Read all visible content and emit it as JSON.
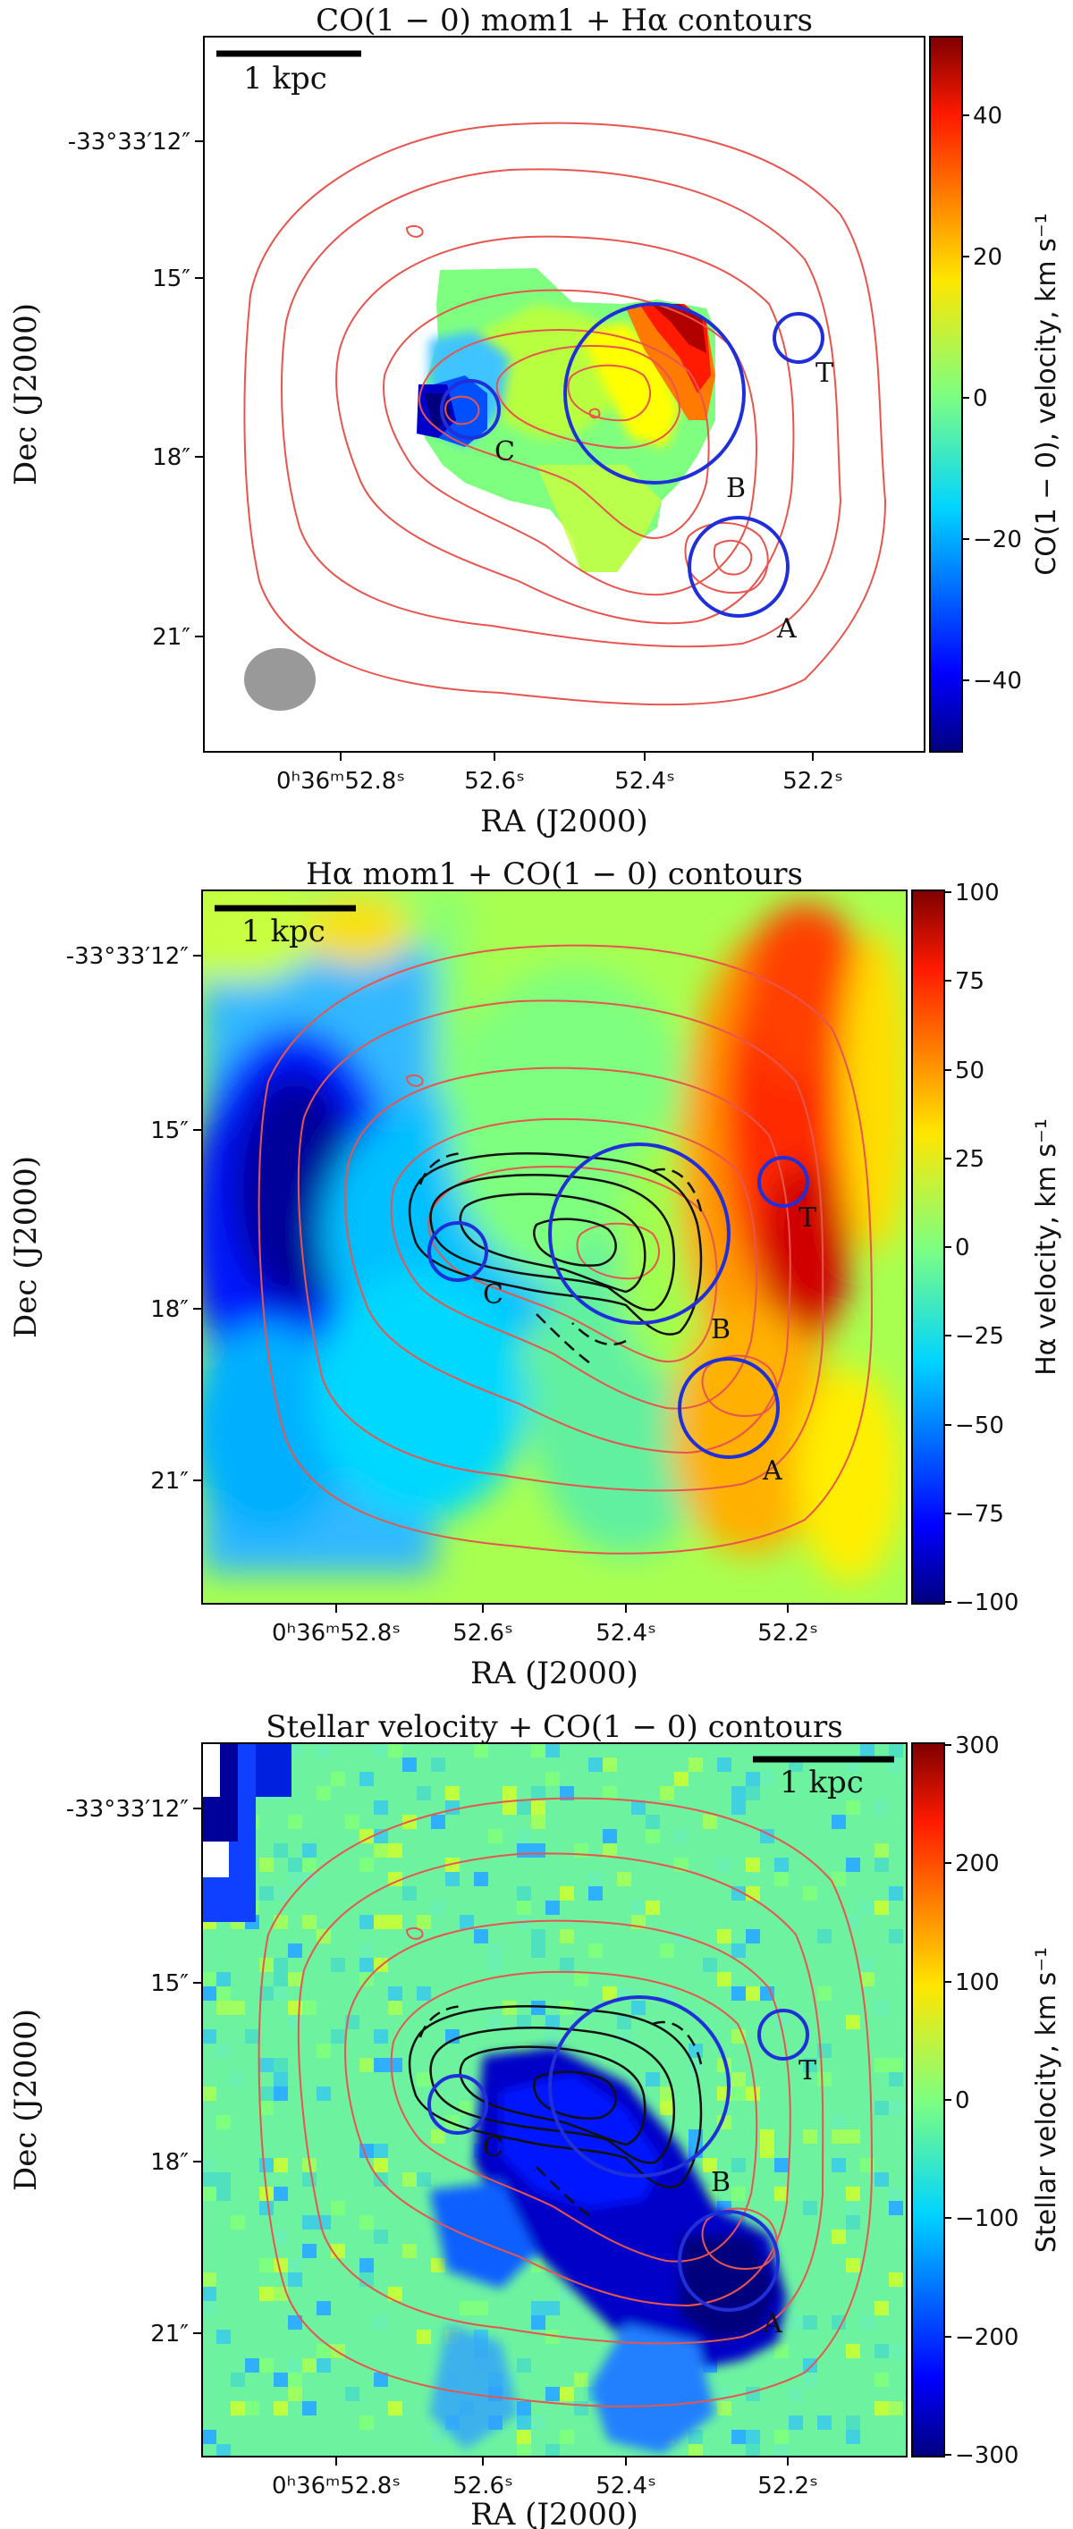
{
  "chart_data": [
    {
      "type": "heatmap",
      "title": "CO(1 − 0) mom1 + Hα contours",
      "xlabel": "RA (J2000)",
      "ylabel": "Dec (J2000)",
      "x_ticks": [
        "0ʰ36ᵐ52.8ˢ",
        "52.6ˢ",
        "52.4ˢ",
        "52.2ˢ"
      ],
      "y_ticks": [
        "-33°33′12″",
        "15″",
        "18″",
        "21″"
      ],
      "colorbar": {
        "label": "CO(1 − 0), velocity, km s⁻¹",
        "range": [
          -50,
          50
        ],
        "ticks": [
          "40",
          "20",
          "0",
          "−20",
          "−40"
        ],
        "colormap": "jet"
      },
      "scalebar": "1 kpc",
      "contours": "Hα",
      "regions": [
        "C",
        "T",
        "B",
        "A"
      ],
      "beam": true
    },
    {
      "type": "heatmap",
      "title": "Hα mom1 + CO(1 − 0) contours",
      "xlabel": "RA (J2000)",
      "ylabel": "Dec (J2000)",
      "x_ticks": [
        "0ʰ36ᵐ52.8ˢ",
        "52.6ˢ",
        "52.4ˢ",
        "52.2ˢ"
      ],
      "y_ticks": [
        "-33°33′12″",
        "15″",
        "18″",
        "21″"
      ],
      "colorbar": {
        "label": "Hα velocity, km s⁻¹",
        "range": [
          -100,
          100
        ],
        "ticks": [
          "100",
          "75",
          "50",
          "25",
          "0",
          "−25",
          "−50",
          "−75",
          "−100"
        ],
        "colormap": "jet"
      },
      "scalebar": "1 kpc",
      "contours": "CO(1 − 0)",
      "regions": [
        "C",
        "T",
        "B",
        "A"
      ]
    },
    {
      "type": "heatmap",
      "title": "Stellar velocity + CO(1 − 0) contours",
      "xlabel": "RA (J2000)",
      "ylabel": "Dec (J2000)",
      "x_ticks": [
        "0ʰ36ᵐ52.8ˢ",
        "52.6ˢ",
        "52.4ˢ",
        "52.2ˢ"
      ],
      "y_ticks": [
        "-33°33′12″",
        "15″",
        "18″",
        "21″"
      ],
      "colorbar": {
        "label": "Stellar velocity, km s⁻¹",
        "range": [
          -300,
          300
        ],
        "ticks": [
          "300",
          "200",
          "100",
          "0",
          "−100",
          "−200",
          "−300"
        ],
        "colormap": "jet"
      },
      "scalebar": "1 kpc",
      "contours": "CO(1 − 0)",
      "regions": [
        "C",
        "T",
        "B",
        "A"
      ]
    }
  ],
  "colors": {
    "contour_red": "#e8554f",
    "contour_black": "#111111",
    "region_blue": "#1f2fd9",
    "beam_gray": "#999999"
  }
}
